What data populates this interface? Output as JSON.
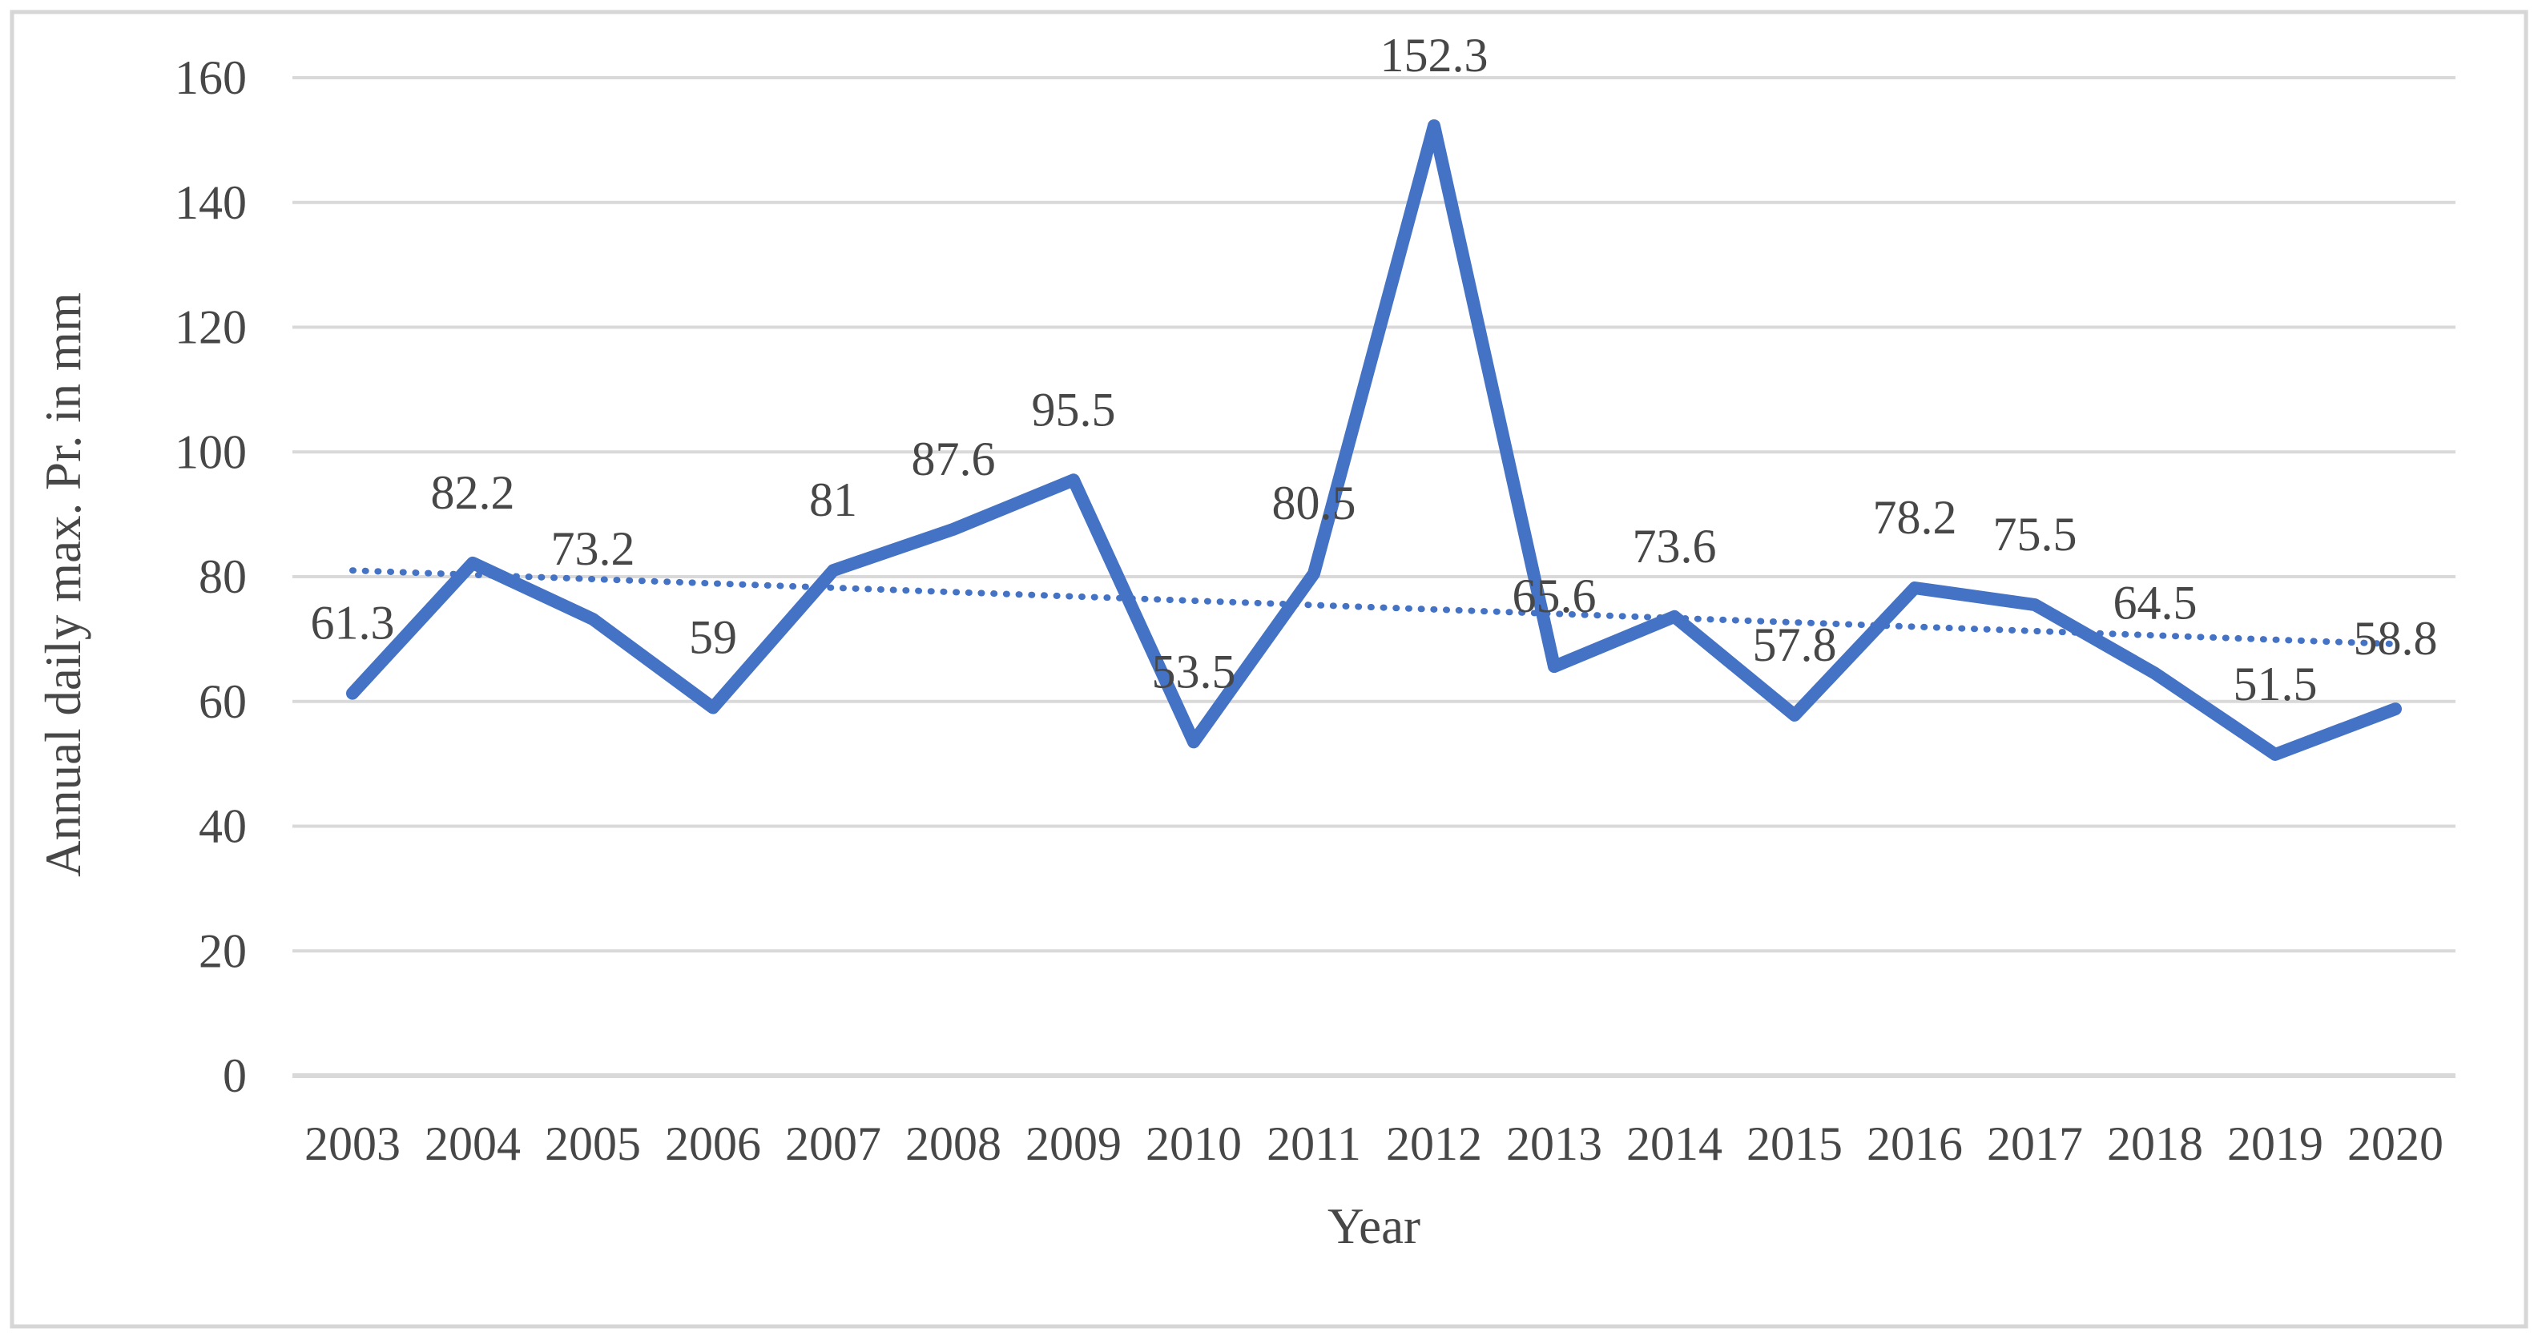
{
  "figure": {
    "background": "#ffffff"
  },
  "chart_data": {
    "type": "line",
    "title": "",
    "xlabel": "Year",
    "ylabel": "Annual daily max. Pr. in mm",
    "categories": [
      "2003",
      "2004",
      "2005",
      "2006",
      "2007",
      "2008",
      "2009",
      "2010",
      "2011",
      "2012",
      "2013",
      "2014",
      "2015",
      "2016",
      "2017",
      "2018",
      "2019",
      "2020"
    ],
    "values": [
      61.3,
      82.2,
      73.2,
      59,
      81,
      87.6,
      95.5,
      53.5,
      80.5,
      152.3,
      65.6,
      73.6,
      57.8,
      78.2,
      75.5,
      64.5,
      51.5,
      58.8
    ],
    "data_labels": [
      "61.3",
      "82.2",
      "73.2",
      "59",
      "81",
      "87.6",
      "95.5",
      "53.5",
      "80.5",
      "152.3",
      "65.6",
      "73.6",
      "57.8",
      "78.2",
      "75.5",
      "64.5",
      "51.5",
      "58.8"
    ],
    "ylim": [
      0,
      160
    ],
    "yticks": [
      0,
      20,
      40,
      60,
      80,
      100,
      120,
      140,
      160
    ],
    "grid": true,
    "legend": false,
    "trendline": {
      "style": "dotted",
      "type": "linear",
      "start_value": 81.0,
      "end_value": 69.2
    },
    "colors": {
      "series": "#4472c4",
      "trendline": "#4472c4",
      "gridline": "#d9d9d9",
      "axis_line": "#d9d9d9",
      "text": "#474747",
      "border": "#d6d6d6"
    }
  }
}
